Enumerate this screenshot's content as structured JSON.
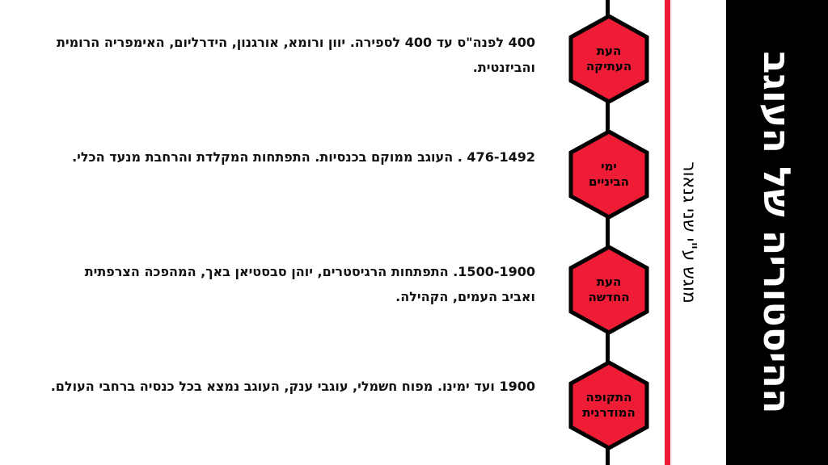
{
  "title": "ההיסטוריה של העוגב",
  "subtitle": "מוגש ע\"י שני גנאור",
  "colors": {
    "accent": "#ee1d35",
    "band": "#000000",
    "hex_fill": "#ee1d35",
    "hex_stroke": "#000000"
  },
  "eras": [
    {
      "label_line1": "העת",
      "label_line2": "העתיקה",
      "text": "400 לפנה\"ס עד 400 לספירה.  יוון ורומא, אורגנון, הידרליום, האימפריה הרומית והביזנטית."
    },
    {
      "label_line1": "ימי",
      "label_line2": "הביניים",
      "text": "476-1492 . העוגב ממוקם בכנסיות.  התפתחות המקלדת והרחבת מנעד הכלי."
    },
    {
      "label_line1": "העת",
      "label_line2": "החדשה",
      "text": "1500-1900. התפתחות הרגיסטרים, יוהן סבסטיאן באך, המהפכה הצרפתית ואביב העמים, הקהילה."
    },
    {
      "label_line1": "התקופה",
      "label_line2": "המודרנית",
      "text": "1900 ועד ימינו.  מפוח חשמלי, עוגבי ענק, העוגב נמצא בכל כנסיה ברחבי העולם."
    }
  ]
}
